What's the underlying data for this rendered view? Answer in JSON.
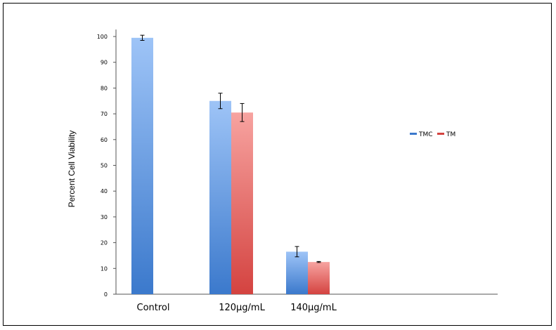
{
  "chart_data": {
    "type": "bar",
    "title": "",
    "xlabel": "",
    "ylabel": "Percent Cell Viability",
    "categories": [
      "Control",
      "120µg/mL",
      "140µg/mL"
    ],
    "series": [
      {
        "name": "TMC",
        "values": [
          99.5,
          75.0,
          16.5
        ],
        "errors": [
          1.0,
          3.0,
          2.0
        ],
        "color_top": "#9ec4f7",
        "color_bottom": "#3b79cc"
      },
      {
        "name": "TM",
        "values": [
          null,
          70.5,
          12.5
        ],
        "errors": [
          null,
          3.5,
          0.2
        ],
        "color_top": "#f7a3a0",
        "color_bottom": "#d44340"
      }
    ],
    "ylim": [
      0,
      105
    ],
    "yticks": [
      "0",
      "10",
      "20",
      "30",
      "40",
      "50",
      "60",
      "70",
      "80",
      "90",
      "100"
    ],
    "grid": false,
    "legend_position": "right"
  }
}
